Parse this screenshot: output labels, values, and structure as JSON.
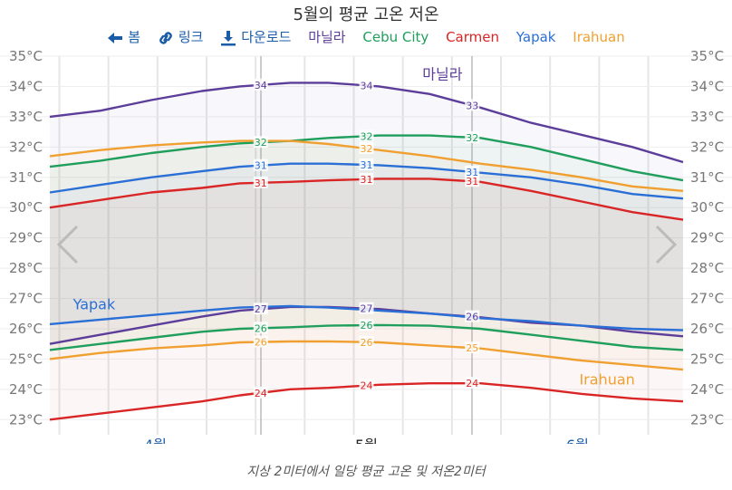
{
  "title": "5월의 평균 고온 저온",
  "nav": {
    "back_label": "봄",
    "link_label": "링크",
    "download_label": "다운로드"
  },
  "caption": "지상 2미터에서 일당 평균 고온 및 저온2미터",
  "chart_data": {
    "type": "line",
    "title": "5월의 평균 고온 저온",
    "ylim": [
      22.5,
      35
    ],
    "y_ticks": [
      "23°C",
      "24°C",
      "25°C",
      "26°C",
      "27°C",
      "28°C",
      "29°C",
      "30°C",
      "31°C",
      "32°C",
      "33°C",
      "34°C",
      "35°C"
    ],
    "month_labels": [
      "4월",
      "5월",
      "6월"
    ],
    "grid": true,
    "legend_position": "top",
    "series": [
      {
        "name": "마닐라",
        "color": "#5c3d99",
        "high": [
          {
            "x": 0,
            "y": 33.0
          },
          {
            "x": 0.08,
            "y": 33.2
          },
          {
            "x": 0.16,
            "y": 33.55
          },
          {
            "x": 0.24,
            "y": 33.85
          },
          {
            "x": 0.3,
            "y": 34.0
          },
          {
            "x": 0.38,
            "y": 34.12
          },
          {
            "x": 0.44,
            "y": 34.12
          },
          {
            "x": 0.52,
            "y": 34.0
          },
          {
            "x": 0.6,
            "y": 33.75
          },
          {
            "x": 0.68,
            "y": 33.3
          },
          {
            "x": 0.76,
            "y": 32.8
          },
          {
            "x": 0.84,
            "y": 32.4
          },
          {
            "x": 0.92,
            "y": 32.0
          },
          {
            "x": 1,
            "y": 31.5
          }
        ],
        "low": [
          {
            "x": 0,
            "y": 25.5
          },
          {
            "x": 0.08,
            "y": 25.8
          },
          {
            "x": 0.16,
            "y": 26.1
          },
          {
            "x": 0.24,
            "y": 26.4
          },
          {
            "x": 0.3,
            "y": 26.6
          },
          {
            "x": 0.38,
            "y": 26.72
          },
          {
            "x": 0.44,
            "y": 26.72
          },
          {
            "x": 0.52,
            "y": 26.65
          },
          {
            "x": 0.6,
            "y": 26.5
          },
          {
            "x": 0.68,
            "y": 26.38
          },
          {
            "x": 0.76,
            "y": 26.2
          },
          {
            "x": 0.84,
            "y": 26.1
          },
          {
            "x": 0.92,
            "y": 25.9
          },
          {
            "x": 1,
            "y": 25.75
          }
        ],
        "high_labels": [
          {
            "x": 0.333,
            "text": "34"
          },
          {
            "x": 0.5,
            "text": "34"
          },
          {
            "x": 0.667,
            "text": "33"
          }
        ],
        "low_labels": [
          {
            "x": 0.333,
            "text": "27"
          },
          {
            "x": 0.5,
            "text": "27"
          },
          {
            "x": 0.667,
            "text": "26"
          }
        ],
        "line_label": "마닐라"
      },
      {
        "name": "Cebu City",
        "color": "#1f9e5c",
        "high": [
          {
            "x": 0,
            "y": 31.35
          },
          {
            "x": 0.08,
            "y": 31.55
          },
          {
            "x": 0.16,
            "y": 31.8
          },
          {
            "x": 0.24,
            "y": 32.0
          },
          {
            "x": 0.3,
            "y": 32.12
          },
          {
            "x": 0.38,
            "y": 32.2
          },
          {
            "x": 0.44,
            "y": 32.3
          },
          {
            "x": 0.52,
            "y": 32.38
          },
          {
            "x": 0.6,
            "y": 32.38
          },
          {
            "x": 0.68,
            "y": 32.3
          },
          {
            "x": 0.76,
            "y": 32.0
          },
          {
            "x": 0.84,
            "y": 31.6
          },
          {
            "x": 0.92,
            "y": 31.2
          },
          {
            "x": 1,
            "y": 30.9
          }
        ],
        "low": [
          {
            "x": 0,
            "y": 25.3
          },
          {
            "x": 0.08,
            "y": 25.5
          },
          {
            "x": 0.16,
            "y": 25.7
          },
          {
            "x": 0.24,
            "y": 25.9
          },
          {
            "x": 0.3,
            "y": 26.0
          },
          {
            "x": 0.38,
            "y": 26.05
          },
          {
            "x": 0.44,
            "y": 26.1
          },
          {
            "x": 0.52,
            "y": 26.12
          },
          {
            "x": 0.6,
            "y": 26.1
          },
          {
            "x": 0.68,
            "y": 26.0
          },
          {
            "x": 0.76,
            "y": 25.8
          },
          {
            "x": 0.84,
            "y": 25.6
          },
          {
            "x": 0.92,
            "y": 25.4
          },
          {
            "x": 1,
            "y": 25.3
          }
        ],
        "high_labels": [
          {
            "x": 0.333,
            "text": "32"
          },
          {
            "x": 0.5,
            "text": "32"
          },
          {
            "x": 0.667,
            "text": "32"
          }
        ],
        "low_labels": [
          {
            "x": 0.333,
            "text": "26"
          },
          {
            "x": 0.5,
            "text": "26"
          }
        ]
      },
      {
        "name": "Carmen",
        "color": "#d92525",
        "high": [
          {
            "x": 0,
            "y": 30.0
          },
          {
            "x": 0.08,
            "y": 30.25
          },
          {
            "x": 0.16,
            "y": 30.5
          },
          {
            "x": 0.24,
            "y": 30.65
          },
          {
            "x": 0.3,
            "y": 30.8
          },
          {
            "x": 0.38,
            "y": 30.85
          },
          {
            "x": 0.44,
            "y": 30.9
          },
          {
            "x": 0.52,
            "y": 30.95
          },
          {
            "x": 0.6,
            "y": 30.95
          },
          {
            "x": 0.68,
            "y": 30.85
          },
          {
            "x": 0.76,
            "y": 30.55
          },
          {
            "x": 0.84,
            "y": 30.2
          },
          {
            "x": 0.92,
            "y": 29.85
          },
          {
            "x": 1,
            "y": 29.6
          }
        ],
        "low": [
          {
            "x": 0,
            "y": 23.0
          },
          {
            "x": 0.08,
            "y": 23.2
          },
          {
            "x": 0.16,
            "y": 23.4
          },
          {
            "x": 0.24,
            "y": 23.6
          },
          {
            "x": 0.3,
            "y": 23.8
          },
          {
            "x": 0.38,
            "y": 24.0
          },
          {
            "x": 0.44,
            "y": 24.05
          },
          {
            "x": 0.52,
            "y": 24.15
          },
          {
            "x": 0.6,
            "y": 24.2
          },
          {
            "x": 0.68,
            "y": 24.2
          },
          {
            "x": 0.76,
            "y": 24.05
          },
          {
            "x": 0.84,
            "y": 23.85
          },
          {
            "x": 0.92,
            "y": 23.7
          },
          {
            "x": 1,
            "y": 23.6
          }
        ],
        "high_labels": [
          {
            "x": 0.333,
            "text": "31"
          },
          {
            "x": 0.5,
            "text": "31"
          },
          {
            "x": 0.667,
            "text": "31"
          }
        ],
        "low_labels": [
          {
            "x": 0.333,
            "text": "24"
          },
          {
            "x": 0.5,
            "text": "24"
          },
          {
            "x": 0.667,
            "text": "24"
          }
        ]
      },
      {
        "name": "Yapak",
        "color": "#2a6fd6",
        "high": [
          {
            "x": 0,
            "y": 30.5
          },
          {
            "x": 0.08,
            "y": 30.75
          },
          {
            "x": 0.16,
            "y": 31.0
          },
          {
            "x": 0.24,
            "y": 31.2
          },
          {
            "x": 0.3,
            "y": 31.35
          },
          {
            "x": 0.38,
            "y": 31.45
          },
          {
            "x": 0.44,
            "y": 31.45
          },
          {
            "x": 0.52,
            "y": 31.4
          },
          {
            "x": 0.6,
            "y": 31.3
          },
          {
            "x": 0.68,
            "y": 31.15
          },
          {
            "x": 0.76,
            "y": 31.0
          },
          {
            "x": 0.84,
            "y": 30.75
          },
          {
            "x": 0.92,
            "y": 30.45
          },
          {
            "x": 1,
            "y": 30.3
          }
        ],
        "low": [
          {
            "x": 0,
            "y": 26.15
          },
          {
            "x": 0.08,
            "y": 26.3
          },
          {
            "x": 0.16,
            "y": 26.45
          },
          {
            "x": 0.24,
            "y": 26.6
          },
          {
            "x": 0.3,
            "y": 26.7
          },
          {
            "x": 0.38,
            "y": 26.75
          },
          {
            "x": 0.44,
            "y": 26.7
          },
          {
            "x": 0.52,
            "y": 26.6
          },
          {
            "x": 0.6,
            "y": 26.5
          },
          {
            "x": 0.68,
            "y": 26.35
          },
          {
            "x": 0.76,
            "y": 26.25
          },
          {
            "x": 0.84,
            "y": 26.1
          },
          {
            "x": 0.92,
            "y": 26.0
          },
          {
            "x": 1,
            "y": 25.95
          }
        ],
        "high_labels": [
          {
            "x": 0.333,
            "text": "31"
          },
          {
            "x": 0.5,
            "text": "31"
          },
          {
            "x": 0.667,
            "text": "31"
          }
        ],
        "low_labels": [],
        "line_label": "Yapak"
      },
      {
        "name": "Irahuan",
        "color": "#f0a030",
        "high": [
          {
            "x": 0,
            "y": 31.7
          },
          {
            "x": 0.08,
            "y": 31.9
          },
          {
            "x": 0.16,
            "y": 32.05
          },
          {
            "x": 0.24,
            "y": 32.15
          },
          {
            "x": 0.3,
            "y": 32.2
          },
          {
            "x": 0.38,
            "y": 32.2
          },
          {
            "x": 0.44,
            "y": 32.1
          },
          {
            "x": 0.52,
            "y": 31.9
          },
          {
            "x": 0.6,
            "y": 31.7
          },
          {
            "x": 0.68,
            "y": 31.45
          },
          {
            "x": 0.76,
            "y": 31.25
          },
          {
            "x": 0.84,
            "y": 31.0
          },
          {
            "x": 0.92,
            "y": 30.7
          },
          {
            "x": 1,
            "y": 30.55
          }
        ],
        "low": [
          {
            "x": 0,
            "y": 25.0
          },
          {
            "x": 0.08,
            "y": 25.2
          },
          {
            "x": 0.16,
            "y": 25.35
          },
          {
            "x": 0.24,
            "y": 25.45
          },
          {
            "x": 0.3,
            "y": 25.55
          },
          {
            "x": 0.38,
            "y": 25.58
          },
          {
            "x": 0.44,
            "y": 25.58
          },
          {
            "x": 0.52,
            "y": 25.55
          },
          {
            "x": 0.6,
            "y": 25.45
          },
          {
            "x": 0.68,
            "y": 25.35
          },
          {
            "x": 0.76,
            "y": 25.15
          },
          {
            "x": 0.84,
            "y": 24.95
          },
          {
            "x": 0.92,
            "y": 24.8
          },
          {
            "x": 1,
            "y": 24.65
          }
        ],
        "high_labels": [
          {
            "x": 0.5,
            "text": "32"
          }
        ],
        "low_labels": [
          {
            "x": 0.333,
            "text": "26"
          },
          {
            "x": 0.5,
            "text": "26"
          },
          {
            "x": 0.667,
            "text": "25"
          }
        ],
        "line_label": "Irahuan"
      }
    ]
  }
}
